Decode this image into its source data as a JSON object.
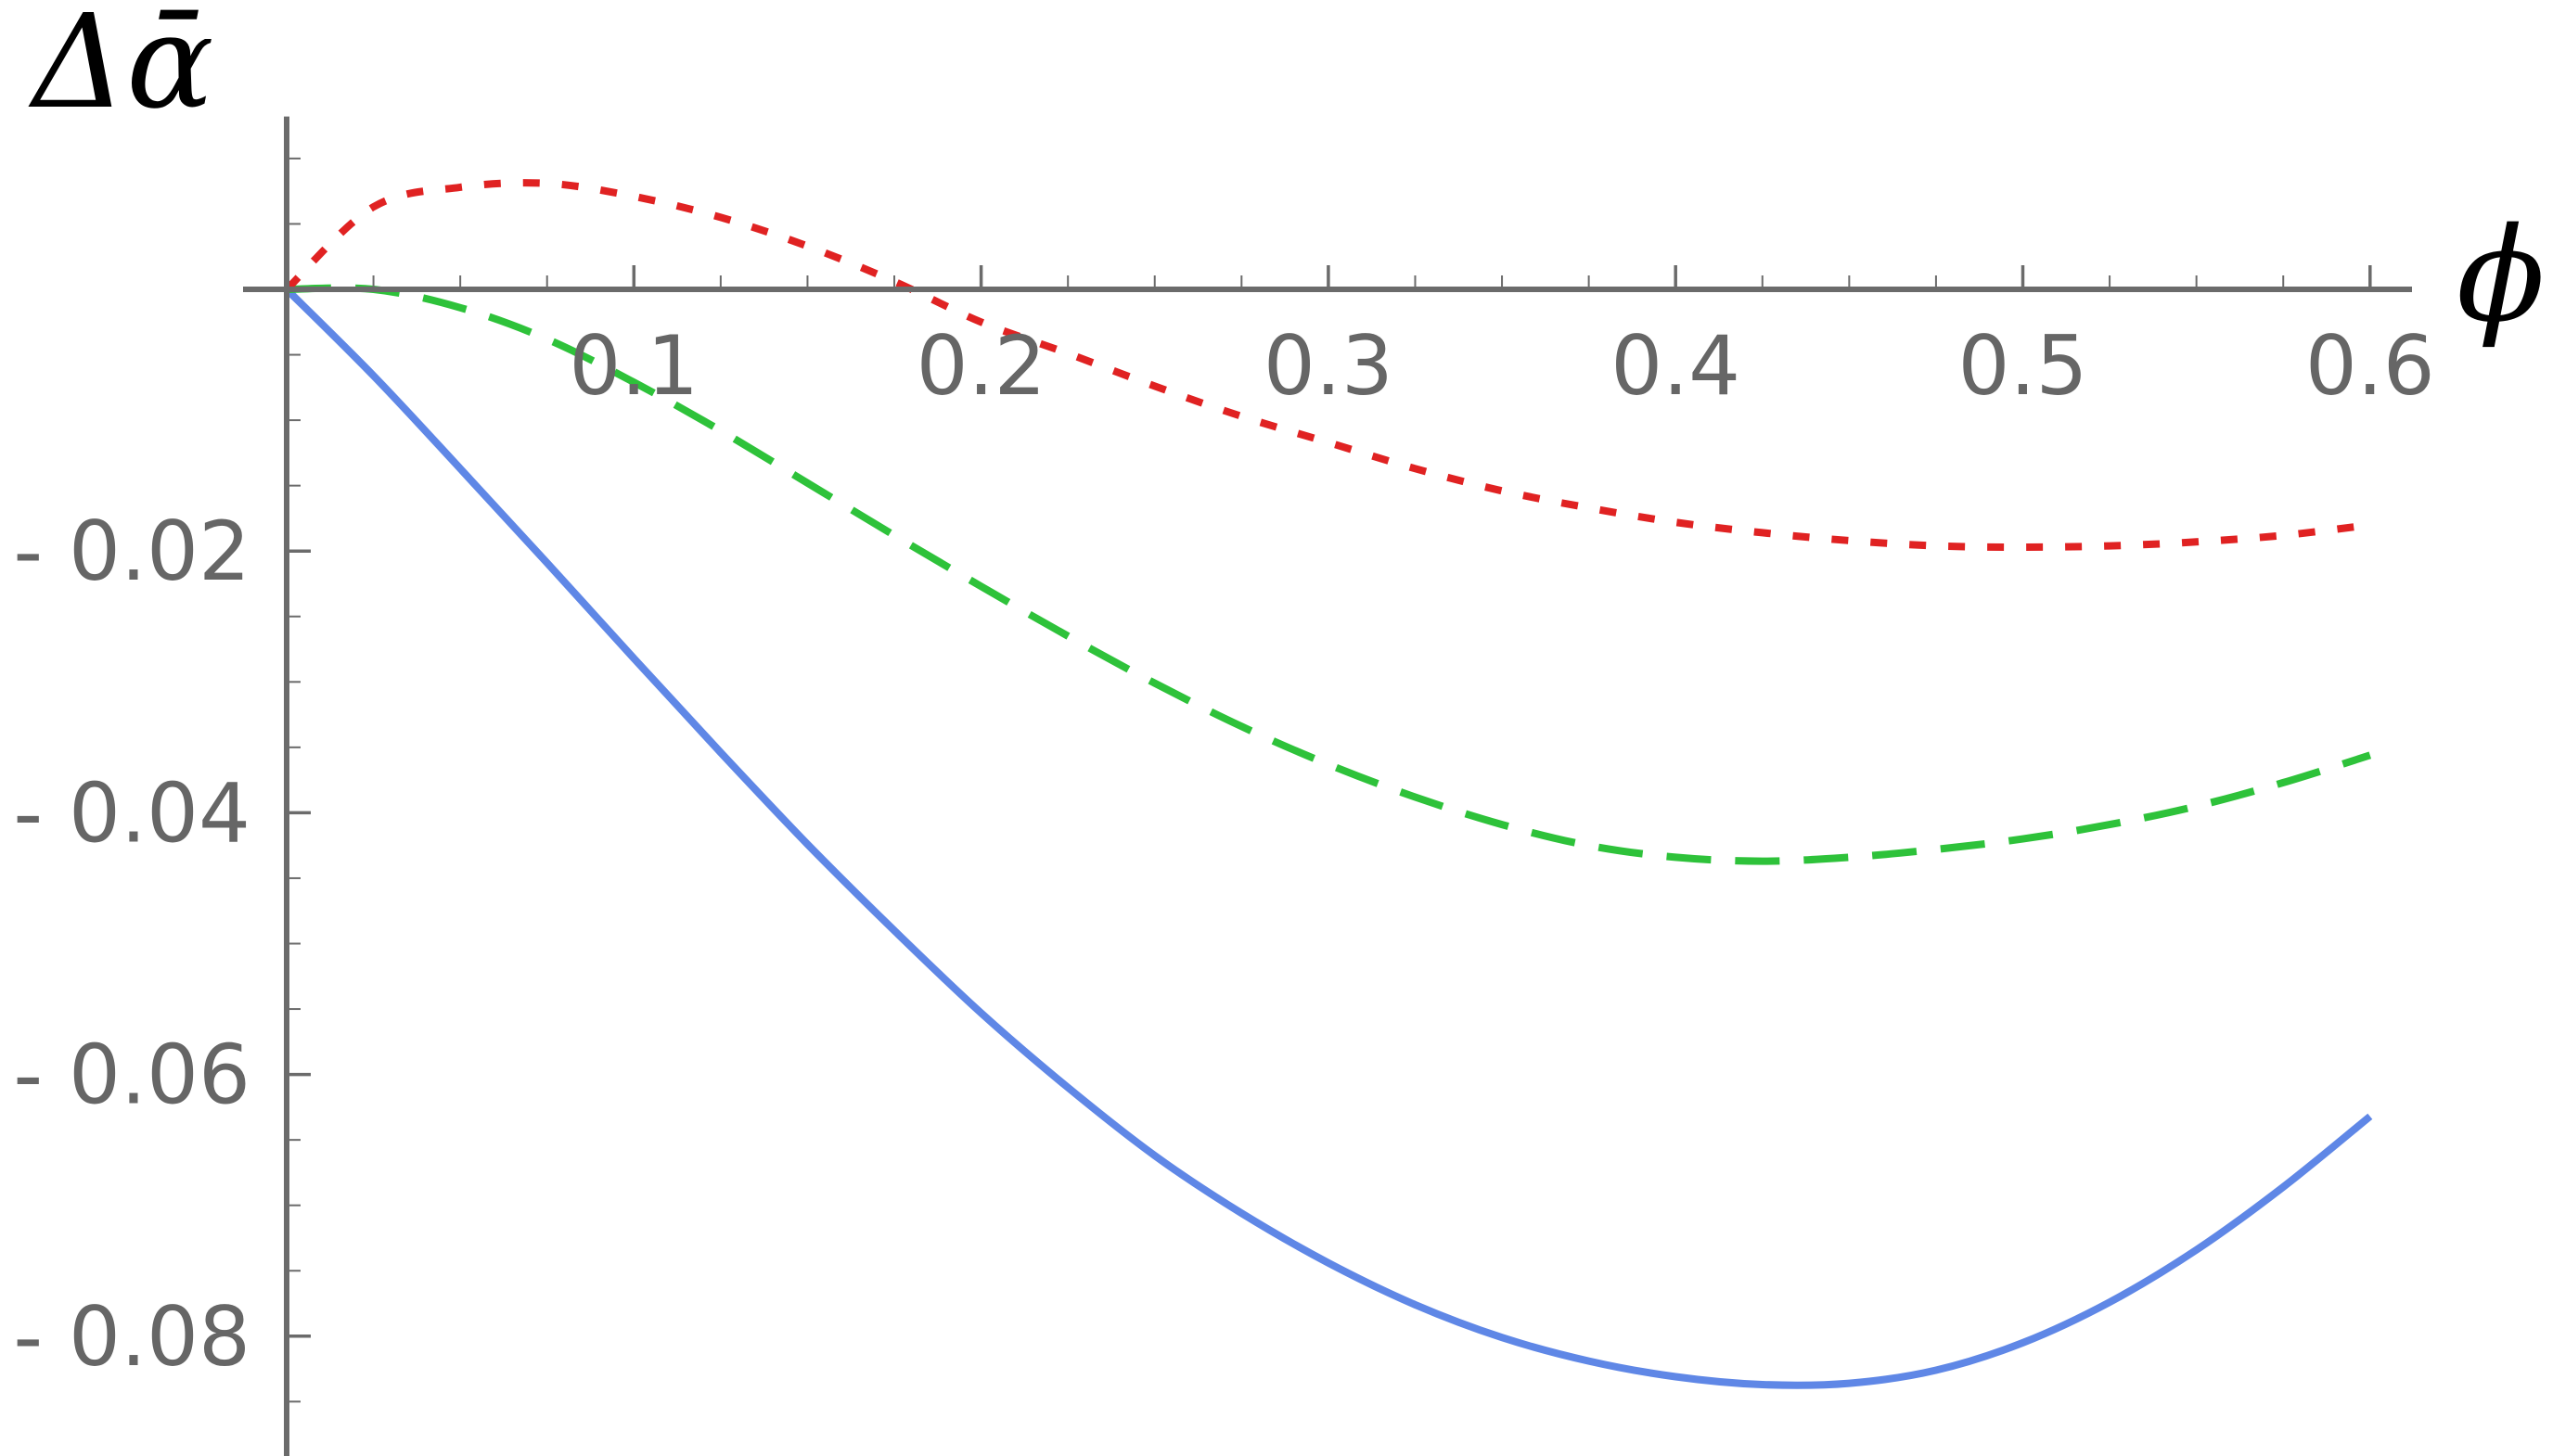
{
  "chart_data": {
    "type": "line",
    "title": "",
    "xlabel": "ϕ",
    "ylabel": "Δᾱ",
    "xlim": [
      0,
      0.6
    ],
    "ylim": [
      -0.09,
      0.0125
    ],
    "x_ticks": [
      0.1,
      0.2,
      0.3,
      0.4,
      0.5,
      0.6
    ],
    "x_tick_labels": [
      "0.1",
      "0.2",
      "0.3",
      "0.4",
      "0.5",
      "0.6"
    ],
    "y_ticks": [
      -0.02,
      -0.04,
      -0.06,
      -0.08
    ],
    "y_tick_labels": [
      "- 0.02",
      "- 0.04",
      "- 0.06",
      "- 0.08"
    ],
    "grid": false,
    "legend": "none",
    "series": [
      {
        "style": "solid",
        "color": "#5f87e6",
        "x": [
          0,
          0.025,
          0.05,
          0.075,
          0.1,
          0.125,
          0.15,
          0.175,
          0.2,
          0.225,
          0.25,
          0.275,
          0.3,
          0.325,
          0.35,
          0.375,
          0.4,
          0.425,
          0.45,
          0.475,
          0.5,
          0.525,
          0.55,
          0.575,
          0.6
        ],
        "y": [
          0,
          -0.0066,
          -0.0137,
          -0.0209,
          -0.0282,
          -0.0354,
          -0.0424,
          -0.049,
          -0.0553,
          -0.061,
          -0.0662,
          -0.0706,
          -0.0744,
          -0.0776,
          -0.0801,
          -0.0819,
          -0.0831,
          -0.0837,
          -0.0836,
          -0.0826,
          -0.0805,
          -0.0774,
          -0.0734,
          -0.0686,
          -0.0632
        ]
      },
      {
        "style": "dashed",
        "color": "#2ec23a",
        "x": [
          0,
          0.025,
          0.05,
          0.075,
          0.1,
          0.125,
          0.15,
          0.175,
          0.2,
          0.225,
          0.25,
          0.275,
          0.3,
          0.325,
          0.35,
          0.375,
          0.4,
          0.425,
          0.45,
          0.475,
          0.5,
          0.525,
          0.55,
          0.575,
          0.6
        ],
        "y": [
          0,
          0,
          -0.0014,
          -0.0038,
          -0.0071,
          -0.0108,
          -0.0148,
          -0.0188,
          -0.0227,
          -0.0265,
          -0.0301,
          -0.0334,
          -0.0363,
          -0.0388,
          -0.0409,
          -0.0425,
          -0.0434,
          -0.0437,
          -0.0434,
          -0.0428,
          -0.042,
          -0.0409,
          -0.0395,
          -0.0377,
          -0.0356
        ]
      },
      {
        "style": "dotted",
        "color": "#e02222",
        "x": [
          0,
          0.025,
          0.05,
          0.075,
          0.1,
          0.125,
          0.15,
          0.175,
          0.2,
          0.225,
          0.25,
          0.275,
          0.3,
          0.325,
          0.35,
          0.375,
          0.4,
          0.425,
          0.45,
          0.475,
          0.5,
          0.525,
          0.55,
          0.575,
          0.6
        ],
        "y": [
          0,
          0.0063,
          0.0078,
          0.0081,
          0.0071,
          0.0055,
          0.0033,
          0.0006,
          -0.0025,
          -0.0049,
          -0.0074,
          -0.0097,
          -0.0117,
          -0.0137,
          -0.0154,
          -0.0167,
          -0.0178,
          -0.0186,
          -0.0192,
          -0.0196,
          -0.0197,
          -0.0196,
          -0.0193,
          -0.0188,
          -0.018
        ]
      }
    ]
  }
}
